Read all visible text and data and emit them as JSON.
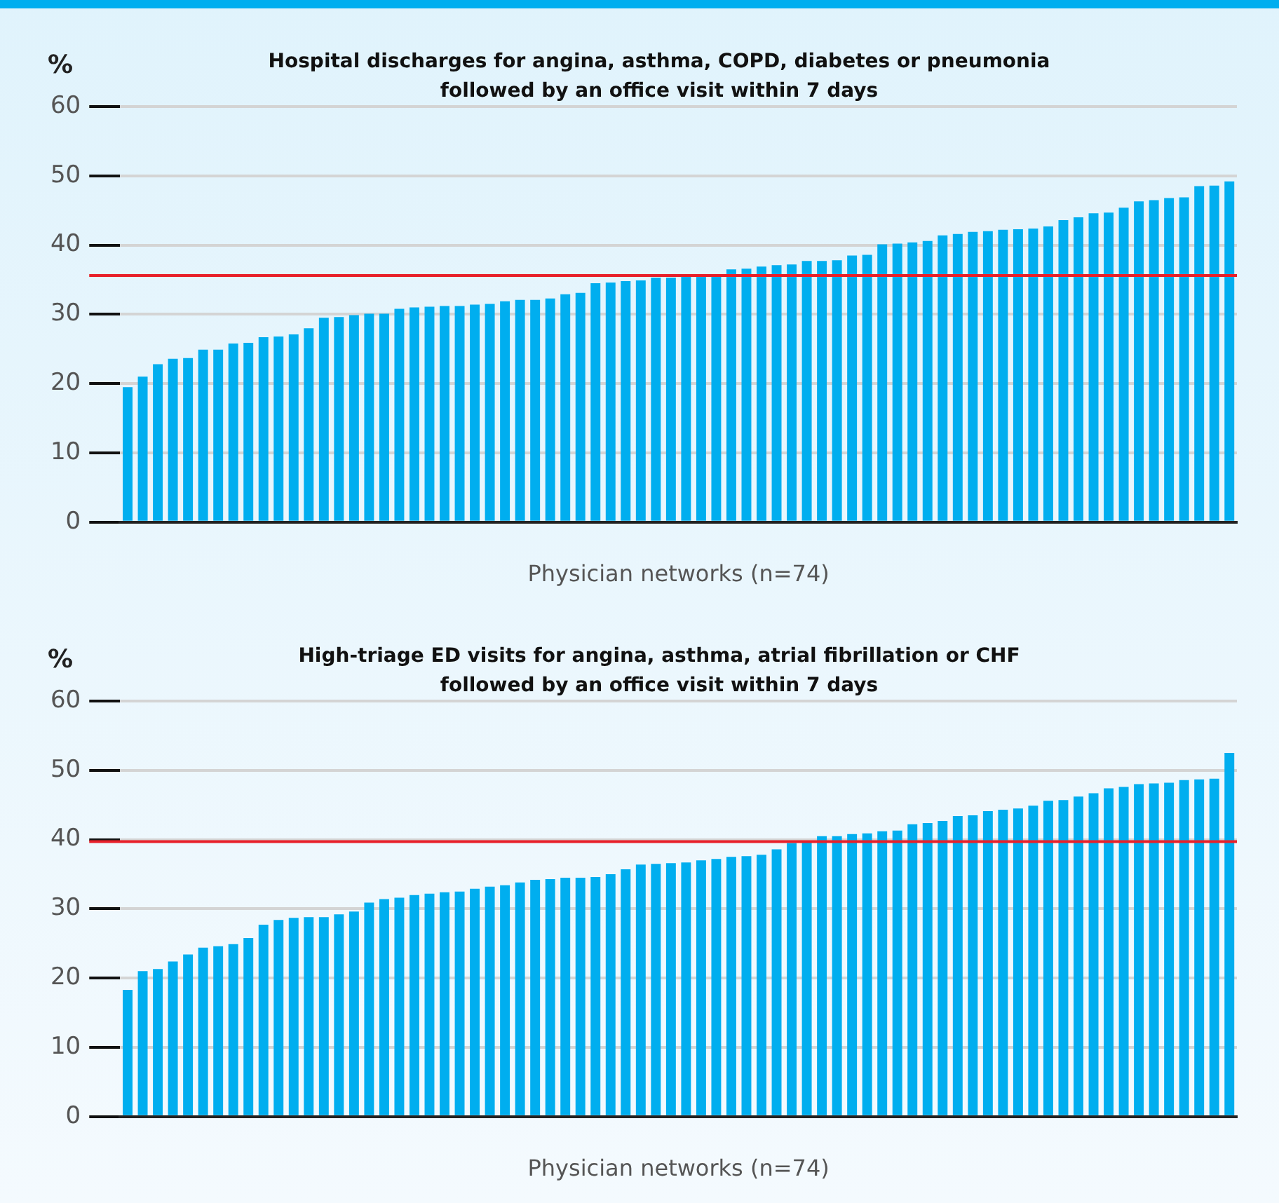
{
  "chart_data": [
    {
      "type": "bar",
      "title": "Hospital discharges for angina, asthma, COPD, diabetes or pneumonia followed by an office visit within 7 days",
      "xlabel": "Physician networks (n=74)",
      "ylabel": "%",
      "categories": [
        null,
        null,
        null,
        null,
        null,
        null,
        null,
        null,
        null,
        null,
        null,
        null,
        null,
        null,
        null,
        null,
        null,
        null,
        null,
        null,
        null,
        null,
        null,
        null,
        null,
        null,
        null,
        null,
        null,
        null,
        null,
        null,
        null,
        null,
        null,
        null,
        null,
        null,
        null,
        null,
        null,
        null,
        null,
        null,
        null,
        null,
        null,
        null,
        null,
        null,
        null,
        null,
        null,
        null,
        null,
        null,
        null,
        null,
        null,
        null,
        null,
        null,
        null,
        null,
        null,
        null,
        null,
        null,
        null,
        null,
        null,
        null,
        null,
        null
      ],
      "values": [
        19.5,
        21,
        22.8,
        23.6,
        23.7,
        24.9,
        24.9,
        25.8,
        25.9,
        26.7,
        26.8,
        27.1,
        28.0,
        29.5,
        29.6,
        29.9,
        30.1,
        30.1,
        30.8,
        31.0,
        31.1,
        31.2,
        31.2,
        31.4,
        31.5,
        31.9,
        32.1,
        32.1,
        32.3,
        32.9,
        33.1,
        34.5,
        34.6,
        34.8,
        34.9,
        35.3,
        35.3,
        35.4,
        35.5,
        35.6,
        36.5,
        36.6,
        36.9,
        37.1,
        37.2,
        37.7,
        37.7,
        37.8,
        38.5,
        38.6,
        40.1,
        40.2,
        40.4,
        40.6,
        41.4,
        41.6,
        41.9,
        42.0,
        42.2,
        42.3,
        42.4,
        42.7,
        43.6,
        44.0,
        44.6,
        44.7,
        45.4,
        46.3,
        46.5,
        46.8,
        46.9,
        48.5,
        48.6,
        49.2
      ],
      "color": "#00aeef",
      "ylim": [
        0,
        60
      ],
      "yticks": [
        0,
        10,
        20,
        30,
        40,
        50,
        60
      ],
      "grid": "y",
      "legend": false,
      "ref_lines": [
        {
          "axis": "y",
          "value": 35.6,
          "color": "#e8202a"
        }
      ]
    },
    {
      "type": "bar",
      "title": "High-triage ED visits for angina, asthma, atrial fibrillation or CHF followed by an office visit within 7 days",
      "xlabel": "Physician networks (n=74)",
      "ylabel": "%",
      "categories": [
        null,
        null,
        null,
        null,
        null,
        null,
        null,
        null,
        null,
        null,
        null,
        null,
        null,
        null,
        null,
        null,
        null,
        null,
        null,
        null,
        null,
        null,
        null,
        null,
        null,
        null,
        null,
        null,
        null,
        null,
        null,
        null,
        null,
        null,
        null,
        null,
        null,
        null,
        null,
        null,
        null,
        null,
        null,
        null,
        null,
        null,
        null,
        null,
        null,
        null,
        null,
        null,
        null,
        null,
        null,
        null,
        null,
        null,
        null,
        null,
        null,
        null,
        null,
        null,
        null,
        null,
        null,
        null,
        null,
        null,
        null,
        null,
        null,
        null
      ],
      "values": [
        18.3,
        21,
        21.3,
        22.4,
        23.4,
        24.4,
        24.6,
        24.9,
        25.8,
        27.7,
        28.4,
        28.7,
        28.8,
        28.8,
        29.2,
        29.6,
        30.9,
        31.4,
        31.6,
        32.0,
        32.2,
        32.4,
        32.5,
        32.9,
        33.2,
        33.4,
        33.8,
        34.2,
        34.3,
        34.5,
        34.5,
        34.6,
        35.0,
        35.7,
        36.4,
        36.5,
        36.6,
        36.7,
        37.0,
        37.2,
        37.5,
        37.6,
        37.8,
        38.6,
        39.5,
        39.7,
        40.5,
        40.5,
        40.8,
        40.9,
        41.2,
        41.3,
        42.2,
        42.4,
        42.7,
        43.4,
        43.5,
        44.1,
        44.3,
        44.5,
        44.9,
        45.6,
        45.7,
        46.2,
        46.7,
        47.4,
        47.6,
        48.0,
        48.1,
        48.2,
        48.6,
        48.7,
        48.8,
        52.5
      ],
      "color": "#00aeef",
      "ylim": [
        0,
        60
      ],
      "yticks": [
        0,
        10,
        20,
        30,
        40,
        50,
        60
      ],
      "grid": "y",
      "legend": false,
      "ref_lines": [
        {
          "axis": "y",
          "value": 39.7,
          "color": "#e8202a"
        }
      ]
    }
  ]
}
